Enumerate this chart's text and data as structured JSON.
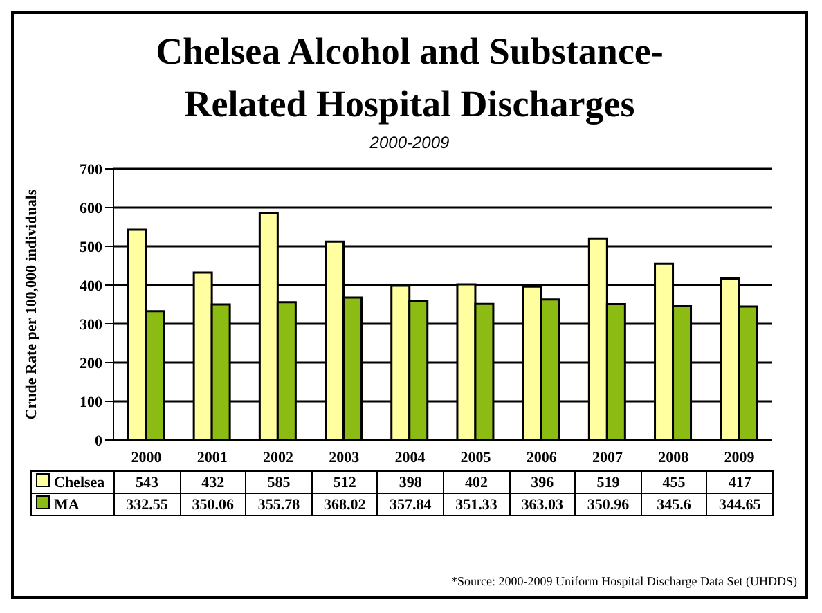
{
  "chart_data": {
    "type": "bar",
    "title": "Chelsea Alcohol and Substance-Related Hospital Discharges",
    "subtitle": "2000-2009",
    "ylabel": "Crude Rate per 100,000 individuals",
    "categories": [
      "2000",
      "2001",
      "2002",
      "2003",
      "2004",
      "2005",
      "2006",
      "2007",
      "2008",
      "2009"
    ],
    "series": [
      {
        "name": "Chelsea",
        "color": "#ffffa0",
        "values": [
          543,
          432,
          585,
          512,
          398,
          402,
          396,
          519,
          455,
          417
        ]
      },
      {
        "name": "MA",
        "color": "#8cbc14",
        "values": [
          332.55,
          350.06,
          355.78,
          368.02,
          357.84,
          351.33,
          363.03,
          350.96,
          345.6,
          344.65
        ]
      }
    ],
    "ylim": [
      0,
      700
    ],
    "yticks": [
      0,
      100,
      200,
      300,
      400,
      500,
      600,
      700
    ],
    "grid": "y",
    "legend": "bottom left",
    "data_labels": true,
    "annotations": [
      "*Source: 2000-2009 Uniform Hospital Discharge Data Set (UHDDS)"
    ]
  }
}
